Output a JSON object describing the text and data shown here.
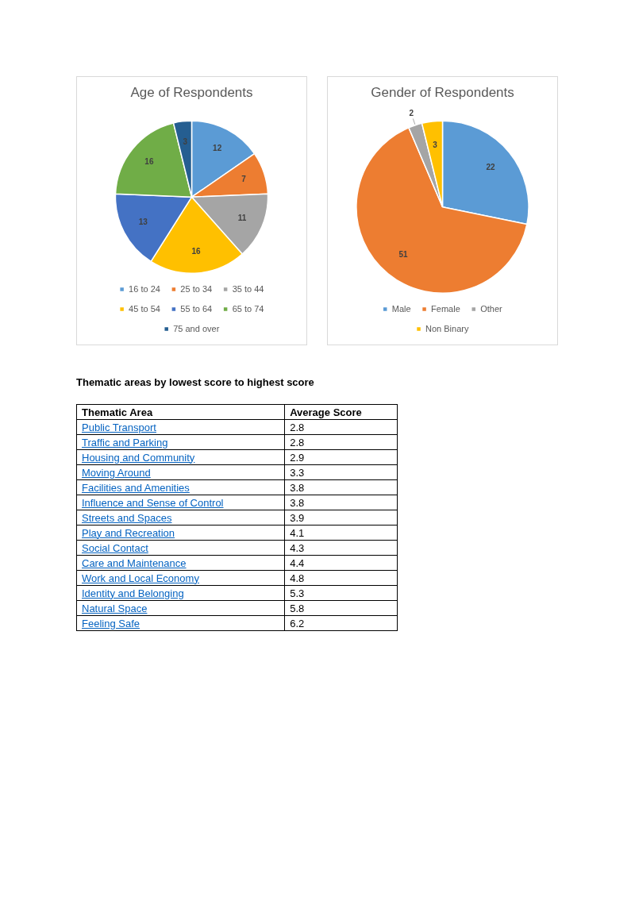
{
  "chart_data": [
    {
      "type": "pie",
      "title": "Age of Respondents",
      "categories": [
        "16 to 24",
        "25 to 34",
        "35 to 44",
        "45 to 54",
        "55 to 64",
        "65 to 74",
        "75 and over"
      ],
      "values": [
        12,
        7,
        11,
        16,
        13,
        16,
        3
      ],
      "colors": [
        "#5b9bd5",
        "#ed7d31",
        "#a5a5a5",
        "#ffc000",
        "#4472c4",
        "#70ad47",
        "#255e91"
      ],
      "data_labels": true,
      "legend": "bottom"
    },
    {
      "type": "pie",
      "title": "Gender of Respondents",
      "categories": [
        "Male",
        "Female",
        "Other",
        "Non Binary"
      ],
      "values": [
        22,
        51,
        2,
        3
      ],
      "colors": [
        "#5b9bd5",
        "#ed7d31",
        "#a5a5a5",
        "#ffc000"
      ],
      "data_labels": true,
      "legend": "bottom"
    },
    {
      "type": "other",
      "title": "Thematic areas by lowest score to highest score",
      "xlabel": "Thematic Area",
      "ylabel": "Average Score",
      "categories": [
        "Public Transport",
        "Traffic and Parking",
        "Housing and Community",
        "Moving Around",
        "Facilities and Amenities",
        "Influence and Sense of Control",
        "Streets and Spaces",
        "Play and Recreation",
        "Social Contact",
        "Care and Maintenance",
        "Work and Local Economy",
        "Identity and Belonging",
        "Natural Space",
        "Feeling Safe"
      ],
      "values": [
        2.8,
        2.8,
        2.9,
        3.3,
        3.8,
        3.8,
        3.9,
        4.1,
        4.3,
        4.4,
        4.8,
        5.3,
        5.8,
        6.2
      ],
      "data_labels": true
    }
  ]
}
